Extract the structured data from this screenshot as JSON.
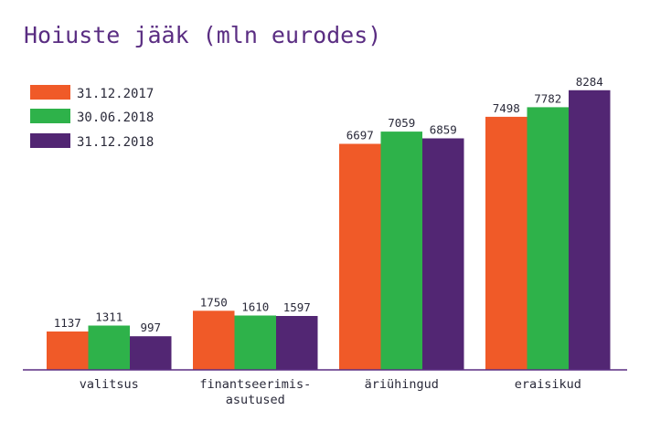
{
  "chart_data": {
    "type": "bar",
    "title": "Hoiuste jääk (mln eurodes)",
    "xlabel": "",
    "ylabel": "",
    "categories": [
      [
        "valitsus"
      ],
      [
        "finantseerimis-",
        "asutused"
      ],
      [
        "äriühingud"
      ],
      [
        "eraisikud"
      ]
    ],
    "series": [
      {
        "name": "31.12.2017",
        "color": "#f05a28",
        "values": [
          1137,
          1750,
          6697,
          7498
        ]
      },
      {
        "name": "30.06.2018",
        "color": "#2eb24a",
        "values": [
          1311,
          1610,
          7059,
          7782
        ]
      },
      {
        "name": "31.12.2018",
        "color": "#522673",
        "values": [
          997,
          1597,
          6859,
          8284
        ]
      }
    ],
    "ylim": [
      0,
      9000
    ],
    "grid": false,
    "legend_position": "top-left",
    "axis_line_color": "#5a2d82"
  }
}
